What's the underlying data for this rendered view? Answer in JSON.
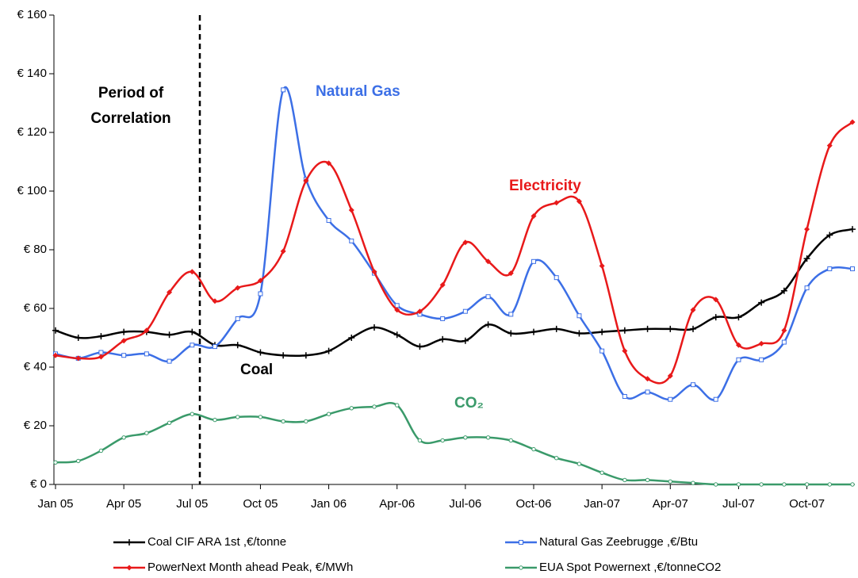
{
  "chart_data": {
    "type": "line",
    "categories": [
      "Jan 05",
      null,
      null,
      "Apr 05",
      null,
      null,
      "Jul 05",
      null,
      null,
      "Oct 05",
      null,
      null,
      "Jan 06",
      null,
      null,
      "Apr-06",
      null,
      null,
      "Jul-06",
      null,
      null,
      "Oct-06",
      null,
      null,
      "Jan-07",
      null,
      null,
      "Apr-07",
      null,
      null,
      "Jul-07",
      null,
      null,
      "Oct-07",
      null,
      null
    ],
    "series": [
      {
        "name": "Coal CIF ARA 1st ,€/tonne",
        "color": "#000000",
        "marker": "plus",
        "values": [
          52.5,
          50,
          50.5,
          52,
          52,
          51,
          52,
          47.5,
          47.5,
          45,
          44,
          44,
          45.5,
          50,
          53.5,
          51,
          47,
          49.5,
          49,
          54.5,
          51.5,
          52,
          53,
          51.5,
          52,
          52.5,
          53,
          53,
          53,
          57,
          57,
          62,
          66,
          77,
          85,
          87
        ]
      },
      {
        "name": "Natural Gas Zeebrugge ,€/Btu",
        "color": "#3c6fe6",
        "marker": "square",
        "values": [
          44.5,
          43,
          45,
          44,
          44.5,
          42,
          47.5,
          47,
          56.5,
          65,
          134.5,
          104,
          90,
          83,
          72,
          61,
          58,
          56.5,
          59,
          64,
          58,
          76,
          70.5,
          57.5,
          45.5,
          30,
          31.5,
          29,
          34,
          29,
          42.5,
          42.5,
          48.5,
          67,
          73.5,
          73.5
        ]
      },
      {
        "name": "PowerNext Month ahead Peak, €/MWh",
        "color": "#e8191a",
        "marker": "diamond",
        "values": [
          44,
          43,
          43.5,
          49,
          52.5,
          65.5,
          72.5,
          62.5,
          67,
          69.5,
          79.5,
          103.5,
          109.5,
          93.5,
          72.5,
          59.5,
          59,
          68,
          82.5,
          76,
          72,
          91.5,
          96,
          96.5,
          74.5,
          45.5,
          36,
          37,
          59.5,
          63,
          47.5,
          48,
          52.5,
          87,
          115.5,
          123.5
        ]
      },
      {
        "name": "EUA Spot Powernext ,€/tonneCO2",
        "color": "#3a9a6a",
        "marker": "circle",
        "values": [
          7.5,
          8,
          11.5,
          16,
          17.5,
          21,
          24,
          22,
          23,
          23,
          21.5,
          21.5,
          24,
          26,
          26.5,
          27,
          15,
          15,
          16,
          16,
          15,
          12,
          9,
          7,
          4,
          1.5,
          1.5,
          1,
          0.5,
          0,
          0,
          0,
          0,
          0,
          0,
          0
        ]
      }
    ],
    "ylim": [
      0,
      160
    ],
    "yticks": [
      {
        "value": 0,
        "label": "€ 0"
      },
      {
        "value": 20,
        "label": "€ 20"
      },
      {
        "value": 40,
        "label": "€ 40"
      },
      {
        "value": 60,
        "label": "€ 60"
      },
      {
        "value": 80,
        "label": "€ 80"
      },
      {
        "value": 100,
        "label": "€ 100"
      },
      {
        "value": 120,
        "label": "€ 120"
      },
      {
        "value": 140,
        "label": "€ 140"
      },
      {
        "value": 160,
        "label": "€ 160"
      }
    ],
    "annotations": [
      "Period of",
      "Correlation",
      "Natural Gas",
      "Electricity",
      "Coal",
      "CO₂"
    ],
    "legend": "bottom"
  }
}
